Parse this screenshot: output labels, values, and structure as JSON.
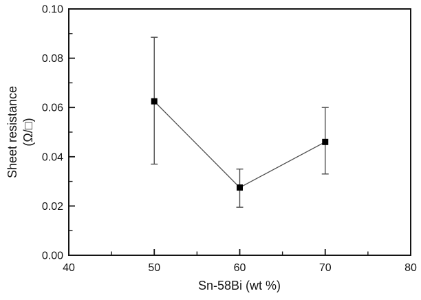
{
  "chart_data": {
    "type": "scatter",
    "title": "",
    "xlabel": "Sn-58Bi (wt %)",
    "ylabel_lines": [
      "Sheet resistance",
      "(Ω/□)"
    ],
    "xlim": [
      40,
      80
    ],
    "ylim": [
      0.0,
      0.1
    ],
    "x_major_ticks": [
      {
        "value": 40,
        "label": "40"
      },
      {
        "value": 50,
        "label": "50"
      },
      {
        "value": 60,
        "label": "60"
      },
      {
        "value": 70,
        "label": "70"
      },
      {
        "value": 80,
        "label": "80"
      }
    ],
    "x_minor_ticks": [
      45,
      55,
      65,
      75
    ],
    "y_major_ticks": [
      {
        "value": 0.0,
        "label": "0.00"
      },
      {
        "value": 0.02,
        "label": "0.02"
      },
      {
        "value": 0.04,
        "label": "0.04"
      },
      {
        "value": 0.06,
        "label": "0.06"
      },
      {
        "value": 0.08,
        "label": "0.08"
      },
      {
        "value": 0.1,
        "label": "0.10"
      }
    ],
    "y_minor_ticks": [
      0.01,
      0.03,
      0.05,
      0.07,
      0.09
    ],
    "grid": false,
    "legend": "none",
    "series": [
      {
        "marker": "filled-square",
        "x": [
          50,
          60,
          70
        ],
        "y": [
          0.0625,
          0.0275,
          0.046
        ],
        "error_low": [
          0.037,
          0.0195,
          0.033
        ],
        "error_high": [
          0.0885,
          0.035,
          0.06
        ]
      }
    ],
    "colors": {
      "background": "#ffffff",
      "marker": "#000000",
      "line": "#4d4d4d",
      "error_bar": "#4d4d4d",
      "axis": "#141414",
      "text": "#141414"
    }
  }
}
